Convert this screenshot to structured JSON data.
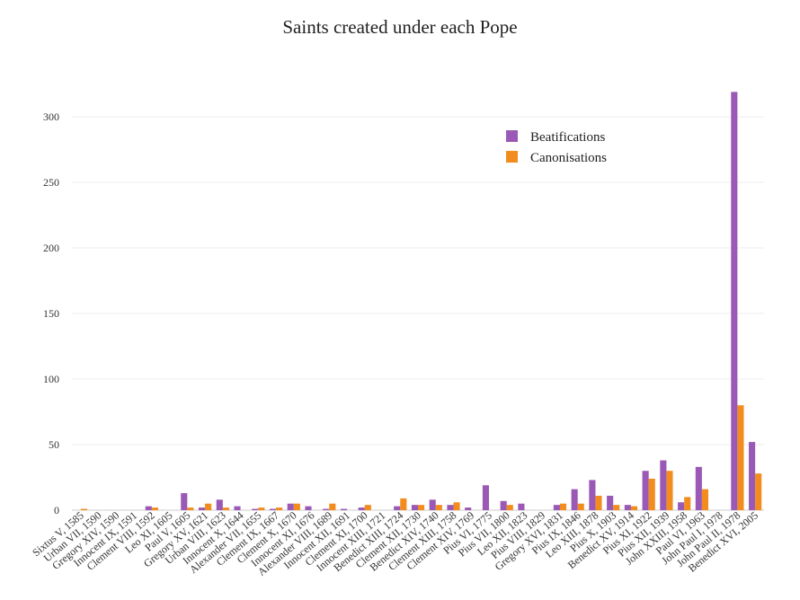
{
  "chart_data": {
    "type": "bar",
    "title": "Saints created under each Pope",
    "xlabel": "",
    "ylabel": "",
    "ylim": [
      0,
      320
    ],
    "yticks": [
      0,
      50,
      100,
      150,
      200,
      250,
      300
    ],
    "grid": true,
    "legend_position": "top-right",
    "categories": [
      "Sixtus V, 1585",
      "Urban VII, 1590",
      "Gregory XIV, 1590",
      "Innocent IX, 1591",
      "Clement VIII, 1592",
      "Leo XI, 1605",
      "Paul V, 1605",
      "Gregory XV, 1621",
      "Urban VIII, 1623",
      "Innocent X, 1644",
      "Alexander VII, 1655",
      "Clement IX, 1667",
      "Clement X, 1670",
      "Innocent XI, 1676",
      "Alexander VIII, 1689",
      "Innocent XII, 1691",
      "Clement XI, 1700",
      "Innocent XIII, 1721",
      "Benedict XIII, 1724",
      "Clement XII, 1730",
      "Benedict XIV, 1740",
      "Clement XIII, 1758",
      "Clement XIV, 1769",
      "Pius VI, 1775",
      "Pius VII, 1800",
      "Leo XII, 1823",
      "Pius VIII, 1829",
      "Gregory XVI, 1831",
      "Pius IX, 1846",
      "Leo XIII, 1878",
      "Pius X, 1903",
      "Benedict XV, 1914",
      "Pius XI, 1922",
      "Pius XII, 1939",
      "John XXIII, 1958",
      "Paul VI, 1963",
      "John Paul I, 1978",
      "John Paul II, 1978",
      "Benedict XVI, 2005"
    ],
    "series": [
      {
        "name": "Beatifications",
        "color": "#9b59b6",
        "values": [
          0,
          0,
          0,
          0,
          3,
          0,
          13,
          2,
          8,
          3,
          1,
          1,
          5,
          3,
          1,
          1,
          2,
          0,
          3,
          4,
          8,
          4,
          2,
          19,
          7,
          5,
          0,
          4,
          16,
          23,
          11,
          4,
          30,
          38,
          6,
          33,
          0,
          319,
          52
        ]
      },
      {
        "name": "Canonisations",
        "color": "#f28c1e",
        "values": [
          1,
          0,
          0,
          0,
          2,
          0,
          2,
          5,
          2,
          0,
          2,
          2,
          5,
          0,
          5,
          0,
          4,
          0,
          9,
          4,
          4,
          6,
          0,
          0,
          4,
          0,
          0,
          5,
          5,
          11,
          4,
          3,
          24,
          30,
          10,
          16,
          0,
          80,
          28
        ]
      }
    ]
  }
}
